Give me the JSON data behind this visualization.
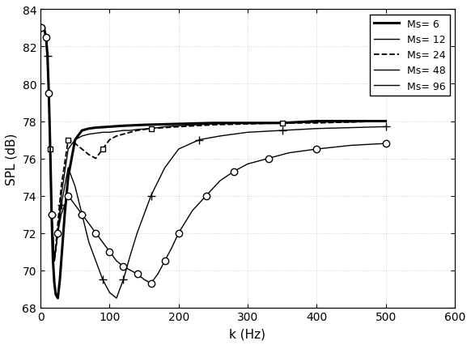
{
  "title": "",
  "xlabel": "k (Hz)",
  "ylabel": "SPL (dB)",
  "xlim": [
    0,
    600
  ],
  "ylim": [
    68,
    84
  ],
  "xticks": [
    0,
    100,
    200,
    300,
    400,
    500,
    600
  ],
  "yticks": [
    68,
    70,
    72,
    74,
    76,
    78,
    80,
    82,
    84
  ],
  "legend_labels": [
    "Ms= 6",
    "Ms= 12",
    "Ms= 24",
    "Ms= 48",
    "Ms= 96"
  ],
  "background_color": "#ffffff",
  "series": [
    {
      "label": "Ms= 6",
      "linestyle": "-",
      "linewidth": 2.2,
      "color": "#000000",
      "marker": null,
      "markersize": 0,
      "markevery": 1,
      "x": [
        1,
        5,
        8,
        10,
        12,
        14,
        16,
        18,
        20,
        22,
        25,
        28,
        30,
        35,
        40,
        50,
        60,
        70,
        80,
        100,
        120,
        150,
        200,
        250,
        300,
        350,
        400,
        450,
        500
      ],
      "y": [
        83.0,
        83.0,
        82.5,
        81.5,
        79.5,
        76.5,
        73.0,
        70.5,
        69.3,
        68.7,
        68.5,
        69.5,
        70.5,
        73.0,
        75.0,
        77.0,
        77.5,
        77.6,
        77.65,
        77.7,
        77.75,
        77.8,
        77.85,
        77.9,
        77.9,
        77.9,
        78.0,
        78.0,
        78.0
      ]
    },
    {
      "label": "Ms= 12",
      "linestyle": "-",
      "linewidth": 1.0,
      "color": "#000000",
      "marker": null,
      "markersize": 0,
      "markevery": 1,
      "x": [
        1,
        5,
        8,
        10,
        12,
        14,
        16,
        20,
        25,
        30,
        40,
        50,
        60,
        70,
        80,
        90,
        100,
        110,
        120,
        130,
        140,
        160,
        180,
        200,
        250,
        300,
        350,
        400,
        450,
        500
      ],
      "y": [
        83.0,
        83.0,
        82.5,
        81.5,
        79.5,
        76.5,
        73.0,
        70.5,
        72.0,
        74.0,
        76.5,
        77.0,
        77.2,
        77.3,
        77.35,
        77.4,
        77.4,
        77.45,
        77.5,
        77.5,
        77.55,
        77.6,
        77.7,
        77.75,
        77.85,
        77.9,
        77.9,
        77.95,
        77.95,
        78.0
      ]
    },
    {
      "label": "Ms= 24",
      "linestyle": "--",
      "linewidth": 1.3,
      "color": "#000000",
      "marker": "s",
      "markersize": 5,
      "markevery": 5,
      "markerfacecolor": "white",
      "x": [
        1,
        5,
        8,
        10,
        12,
        14,
        16,
        20,
        25,
        30,
        40,
        50,
        60,
        70,
        80,
        90,
        100,
        110,
        120,
        140,
        160,
        180,
        200,
        250,
        300,
        350,
        400,
        450,
        500
      ],
      "y": [
        83.0,
        83.0,
        82.5,
        81.5,
        79.5,
        76.5,
        73.0,
        70.5,
        72.5,
        74.5,
        77.0,
        76.8,
        76.5,
        76.2,
        76.0,
        76.5,
        77.0,
        77.2,
        77.3,
        77.5,
        77.6,
        77.65,
        77.7,
        77.8,
        77.85,
        77.9,
        77.9,
        77.95,
        78.0
      ]
    },
    {
      "label": "Ms= 48",
      "linestyle": "-",
      "linewidth": 1.0,
      "color": "#000000",
      "marker": "+",
      "markersize": 7,
      "markevery": 3,
      "markerfacecolor": "black",
      "x": [
        1,
        5,
        8,
        10,
        12,
        14,
        16,
        20,
        25,
        30,
        40,
        50,
        60,
        70,
        80,
        90,
        100,
        110,
        120,
        130,
        140,
        160,
        180,
        200,
        230,
        260,
        300,
        350,
        400,
        450,
        500
      ],
      "y": [
        83.0,
        83.0,
        82.5,
        81.5,
        79.5,
        76.5,
        73.0,
        70.5,
        72.0,
        73.5,
        75.5,
        74.5,
        73.0,
        71.5,
        70.5,
        69.5,
        68.8,
        68.5,
        69.5,
        70.8,
        72.0,
        74.0,
        75.5,
        76.5,
        77.0,
        77.2,
        77.4,
        77.5,
        77.6,
        77.65,
        77.7
      ]
    },
    {
      "label": "Ms= 96",
      "linestyle": "-",
      "linewidth": 1.0,
      "color": "#000000",
      "marker": "o",
      "markersize": 6,
      "markevery": 2,
      "markerfacecolor": "white",
      "x": [
        1,
        5,
        8,
        10,
        12,
        14,
        16,
        20,
        25,
        30,
        40,
        50,
        60,
        70,
        80,
        90,
        100,
        110,
        120,
        130,
        140,
        150,
        160,
        170,
        180,
        190,
        200,
        220,
        240,
        260,
        280,
        300,
        330,
        360,
        400,
        450,
        500
      ],
      "y": [
        83.0,
        83.0,
        82.5,
        81.5,
        79.5,
        76.5,
        73.0,
        70.5,
        72.0,
        73.0,
        74.0,
        73.5,
        73.0,
        72.5,
        72.0,
        71.5,
        71.0,
        70.5,
        70.2,
        70.0,
        69.8,
        69.5,
        69.3,
        69.8,
        70.5,
        71.2,
        72.0,
        73.2,
        74.0,
        74.8,
        75.3,
        75.7,
        76.0,
        76.3,
        76.5,
        76.7,
        76.8
      ]
    }
  ]
}
